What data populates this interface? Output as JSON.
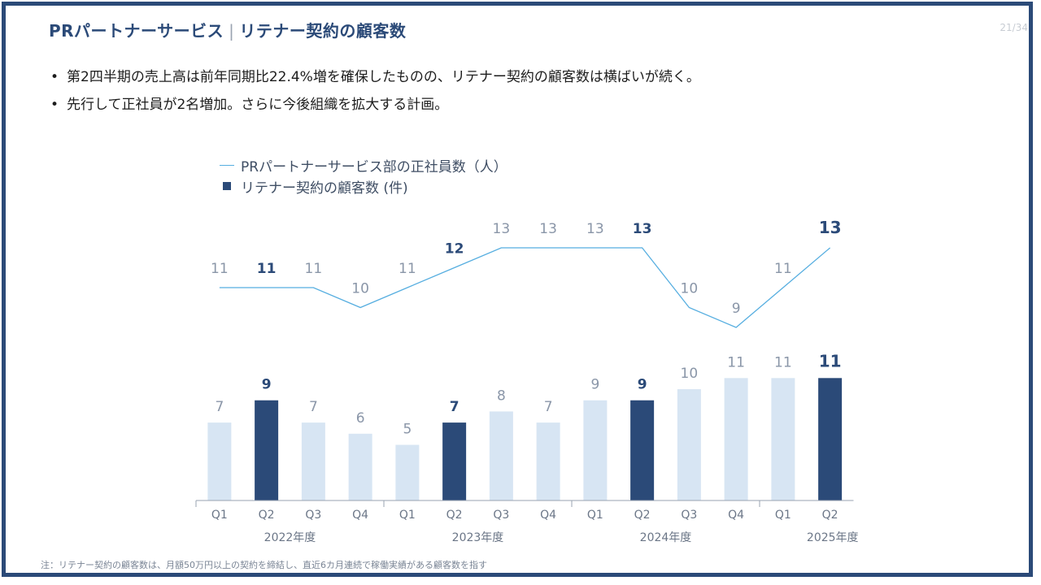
{
  "header": {
    "title_main": "PRパートナーサービス",
    "title_sep": "|",
    "title_sub": "リテナー契約の顧客数",
    "page_num": "21/34"
  },
  "bullets": [
    "第2四半期の売上高は前年同期比22.4%増を確保したものの、リテナー契約の顧客数は横ばいが続く。",
    "先行して正社員が2名増加。さらに今後組織を拡大する計画。"
  ],
  "legend": {
    "line_label": "PRパートナーサービス部の正社員数（人）",
    "bar_label": "リテナー契約の顧客数 (件)"
  },
  "note": "注：リテナー契約の顧客数は、月額50万円以上の契約を締結し、直近6カ月連続で稼働実績がある顧客数を指す",
  "colors": {
    "line": "#56aee0",
    "bar_light": "#d7e5f3",
    "bar_dark": "#2b4a78",
    "label_light": "#8a96a8",
    "axis": "#9aa3b1"
  },
  "chart_data": {
    "type": "bar+line",
    "categories": [
      "Q1",
      "Q2",
      "Q3",
      "Q4",
      "Q1",
      "Q2",
      "Q3",
      "Q4",
      "Q1",
      "Q2",
      "Q3",
      "Q4",
      "Q1",
      "Q2"
    ],
    "year_groups": [
      {
        "label": "2022年度",
        "count": 4
      },
      {
        "label": "2023年度",
        "count": 4
      },
      {
        "label": "2024年度",
        "count": 4
      },
      {
        "label": "2025年度",
        "count": 2
      }
    ],
    "series": [
      {
        "name": "PRパートナーサービス部の正社員数（人）",
        "kind": "line",
        "values": [
          11,
          11,
          11,
          10,
          11,
          12,
          13,
          13,
          13,
          13,
          10,
          9,
          11,
          13
        ],
        "highlight": [
          false,
          true,
          false,
          false,
          false,
          true,
          false,
          false,
          false,
          true,
          false,
          false,
          false,
          true
        ]
      },
      {
        "name": "リテナー契約の顧客数 (件)",
        "kind": "bar",
        "values": [
          7,
          9,
          7,
          6,
          5,
          7,
          8,
          7,
          9,
          9,
          10,
          11,
          11,
          11
        ],
        "highlight": [
          false,
          true,
          false,
          false,
          false,
          true,
          false,
          false,
          false,
          true,
          false,
          false,
          false,
          true
        ]
      }
    ]
  }
}
